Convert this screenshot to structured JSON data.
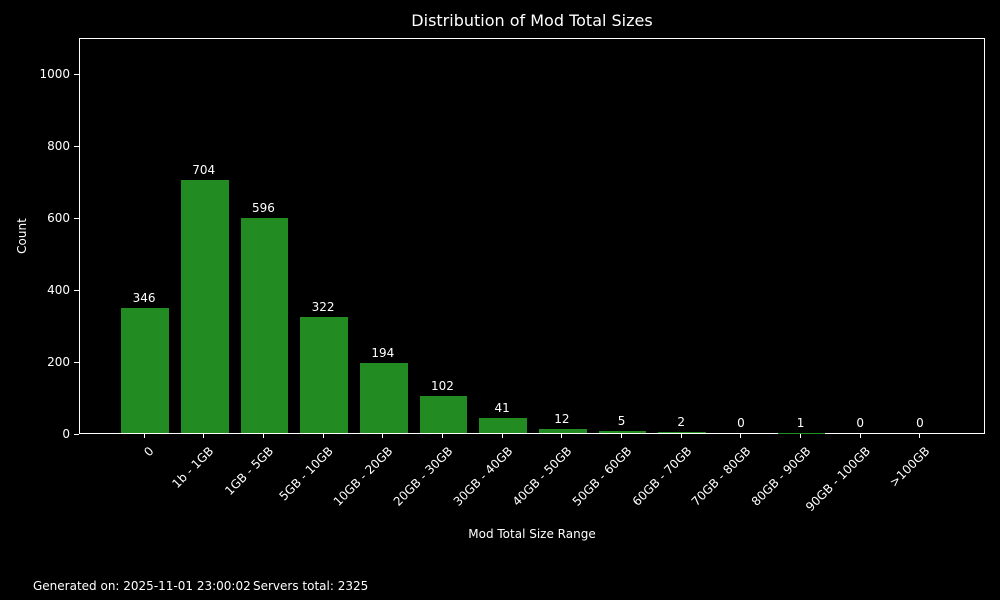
{
  "title": "Distribution of Mod Total Sizes",
  "footer": {
    "generated_on": "Generated on: 2025-11-01 23:00:02",
    "servers_total": "Servers total: 2325"
  },
  "chart_data": {
    "type": "bar",
    "title": "Distribution of Mod Total Sizes",
    "xlabel": "Mod Total Size Range",
    "ylabel": "Count",
    "categories": [
      "0",
      "1b - 1GB",
      "1GB - 5GB",
      "5GB - 10GB",
      "10GB - 20GB",
      "20GB - 30GB",
      "30GB - 40GB",
      "40GB - 50GB",
      "50GB - 60GB",
      "60GB - 70GB",
      "70GB - 80GB",
      "80GB - 90GB",
      "90GB - 100GB",
      ">100GB"
    ],
    "values": [
      346,
      704,
      596,
      322,
      194,
      102,
      41,
      12,
      5,
      2,
      0,
      1,
      0,
      0
    ],
    "yticks": [
      0,
      200,
      400,
      600,
      800,
      1000
    ],
    "ylim": [
      0,
      1100
    ],
    "xtick_rotation_deg": 45,
    "grid": false,
    "legend": null,
    "colors": {
      "bar": "#228B22",
      "background": "#000000",
      "text": "#ffffff",
      "axis": "#ffffff"
    }
  }
}
